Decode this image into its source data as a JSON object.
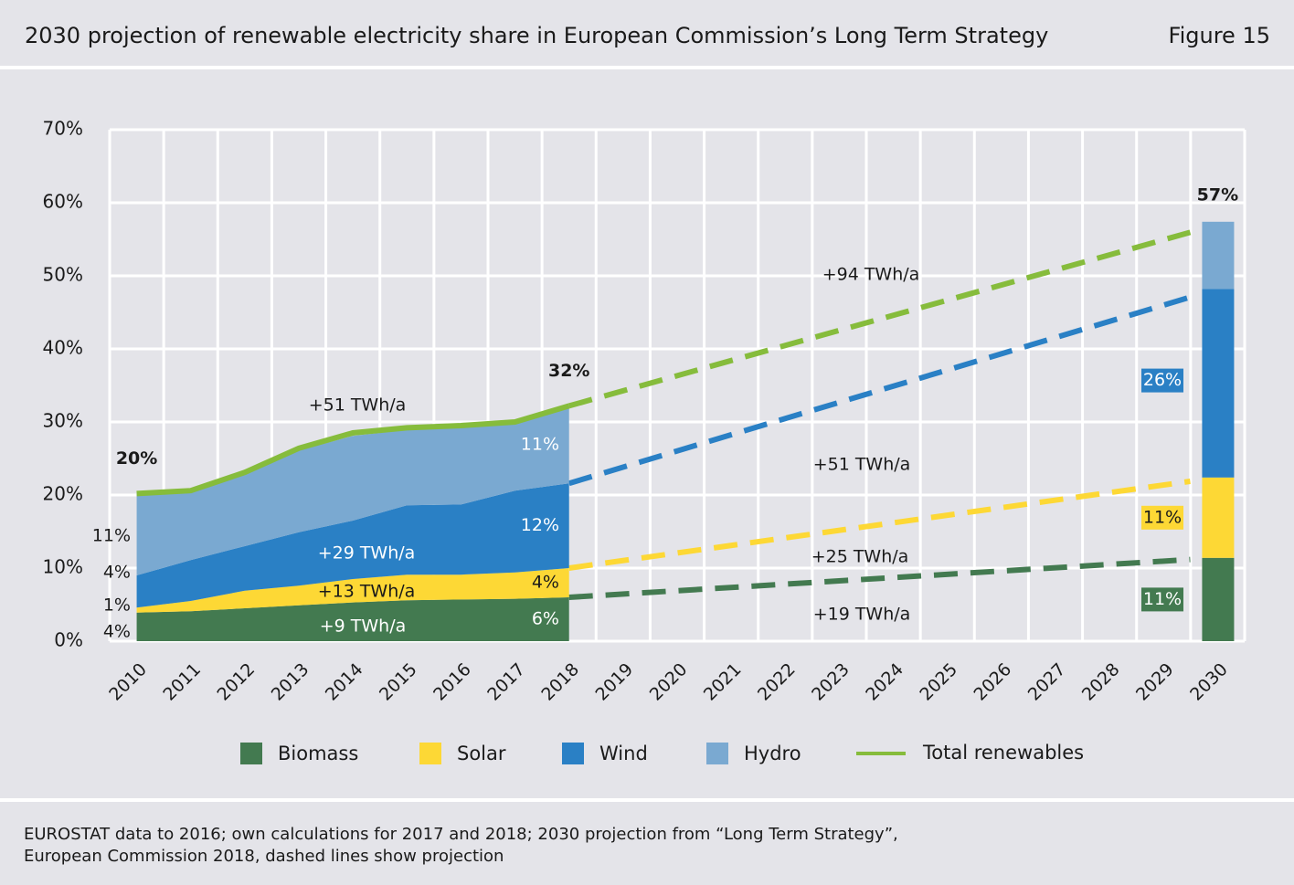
{
  "header": {
    "title": "2030 projection of renewable electricity share in European Commission’s Long Term Strategy",
    "figure": "Figure 15"
  },
  "chart_data": {
    "type": "stacked-area",
    "categories": [
      "2010",
      "2011",
      "2012",
      "2013",
      "2014",
      "2015",
      "2016",
      "2017",
      "2018",
      "2019",
      "2020",
      "2021",
      "2022",
      "2023",
      "2024",
      "2025",
      "2026",
      "2027",
      "2028",
      "2029",
      "2030"
    ],
    "ylim": [
      0,
      70
    ],
    "yticks": [
      {
        "value": 0,
        "label": "0%"
      },
      {
        "value": 10,
        "label": "10%"
      },
      {
        "value": 20,
        "label": "20%"
      },
      {
        "value": 30,
        "label": "30%"
      },
      {
        "value": 40,
        "label": "40%"
      },
      {
        "value": 50,
        "label": "50%"
      },
      {
        "value": 60,
        "label": "60%"
      },
      {
        "value": 70,
        "label": "70%"
      }
    ],
    "grid": true,
    "series": [
      {
        "name": "Biomass",
        "color": "#437a50",
        "values": [
          3.9,
          4.1,
          4.5,
          4.9,
          5.3,
          5.6,
          5.7,
          5.8,
          6.0,
          null,
          null,
          null,
          null,
          null,
          null,
          null,
          null,
          null,
          null,
          null,
          11.4
        ],
        "value_labels": [
          "4%",
          null,
          null,
          null,
          null,
          null,
          null,
          null,
          "6%",
          null,
          null,
          null,
          null,
          null,
          null,
          null,
          null,
          null,
          null,
          null,
          "11%"
        ]
      },
      {
        "name": "Solar",
        "color": "#fdd835",
        "values": [
          0.7,
          1.4,
          2.4,
          2.7,
          3.2,
          3.5,
          3.4,
          3.6,
          4.0,
          null,
          null,
          null,
          null,
          null,
          null,
          null,
          null,
          null,
          null,
          null,
          11.0
        ],
        "value_labels": [
          "1%",
          null,
          null,
          null,
          null,
          null,
          null,
          null,
          "4%",
          null,
          null,
          null,
          null,
          null,
          null,
          null,
          null,
          null,
          null,
          null,
          "11%"
        ]
      },
      {
        "name": "Wind",
        "color": "#2a80c5",
        "values": [
          4.4,
          5.6,
          6.1,
          7.3,
          8.0,
          9.5,
          9.6,
          11.2,
          11.6,
          null,
          null,
          null,
          null,
          null,
          null,
          null,
          null,
          null,
          null,
          null,
          25.8
        ],
        "value_labels": [
          "4%",
          null,
          null,
          null,
          null,
          null,
          null,
          null,
          "12%",
          null,
          null,
          null,
          null,
          null,
          null,
          null,
          null,
          null,
          null,
          null,
          "26%"
        ]
      },
      {
        "name": "Hydro",
        "color": "#7aa9d1",
        "values": [
          11.2,
          9.4,
          10.1,
          11.2,
          11.6,
          10.3,
          10.5,
          9.3,
          10.6,
          null,
          null,
          null,
          null,
          null,
          null,
          null,
          null,
          null,
          null,
          null,
          9.2
        ],
        "value_labels": [
          "11%",
          null,
          null,
          null,
          null,
          null,
          null,
          null,
          "11%",
          null,
          null,
          null,
          null,
          null,
          null,
          null,
          null,
          null,
          null,
          null,
          null
        ]
      }
    ],
    "total": {
      "name": "Total renewables",
      "color": "#86bc3c",
      "values": [
        20.2,
        20.6,
        23.1,
        26.4,
        28.5,
        29.2,
        29.5,
        30.0,
        32.2,
        null,
        null,
        null,
        null,
        null,
        null,
        null,
        null,
        null,
        null,
        null,
        57
      ],
      "value_labels": [
        "20%",
        null,
        null,
        null,
        null,
        null,
        null,
        null,
        "32%",
        null,
        null,
        null,
        null,
        null,
        null,
        null,
        null,
        null,
        null,
        null,
        "57%"
      ]
    },
    "annotations": [
      "+51 TWh/a",
      "+29 TWh/a",
      "+13 TWh/a",
      "+9 TWh/a",
      "+94 TWh/a",
      "+51 TWh/a",
      "+25 TWh/a",
      "+19 TWh/a"
    ]
  },
  "footer": {
    "lines": [
      "EUROSTAT data to 2016; own calculations for 2017 and 2018; 2030 projection from “Long Term Strategy”,",
      "European Commission 2018, dashed lines show projection"
    ]
  }
}
